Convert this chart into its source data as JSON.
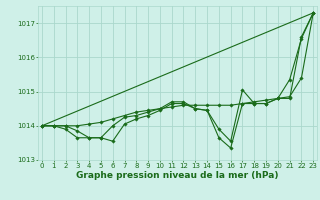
{
  "background_color": "#cff0e8",
  "grid_color": "#aad8cc",
  "line_color": "#1a6b1a",
  "x_values": [
    0,
    1,
    2,
    3,
    4,
    5,
    6,
    7,
    8,
    9,
    10,
    11,
    12,
    13,
    14,
    15,
    16,
    17,
    18,
    19,
    20,
    21,
    22,
    23
  ],
  "series": [
    [
      1014.0,
      1014.0,
      1014.0,
      1013.85,
      1013.65,
      1013.65,
      1013.55,
      1014.05,
      1014.2,
      1014.3,
      1014.45,
      1014.65,
      1014.65,
      1014.5,
      1014.45,
      1013.9,
      1013.55,
      1015.05,
      1014.65,
      1014.65,
      1014.8,
      1014.8,
      1016.6,
      1017.3
    ],
    [
      1014.0,
      1014.0,
      1013.9,
      1013.65,
      1013.65,
      1013.65,
      1014.0,
      1014.25,
      1014.3,
      1014.4,
      1014.5,
      1014.7,
      1014.7,
      1014.5,
      1014.45,
      1013.65,
      1013.35,
      1014.65,
      1014.65,
      1014.65,
      1014.8,
      1015.35,
      1016.55,
      1017.3
    ],
    [
      1014.0,
      1014.0,
      1014.0,
      1014.0,
      1014.05,
      1014.1,
      1014.2,
      1014.3,
      1014.4,
      1014.45,
      1014.5,
      1014.55,
      1014.6,
      1014.6,
      1014.6,
      1014.6,
      1014.6,
      1014.65,
      1014.7,
      1014.75,
      1014.8,
      1014.85,
      1015.4,
      1017.3
    ]
  ],
  "trend_line": [
    [
      0,
      1014.0
    ],
    [
      23,
      1017.3
    ]
  ],
  "ylim": [
    1013.0,
    1017.5
  ],
  "yticks": [
    1013,
    1014,
    1015,
    1016,
    1017
  ],
  "xticks": [
    0,
    1,
    2,
    3,
    4,
    5,
    6,
    7,
    8,
    9,
    10,
    11,
    12,
    13,
    14,
    15,
    16,
    17,
    18,
    19,
    20,
    21,
    22,
    23
  ],
  "marker": "D",
  "markersize": 1.8,
  "linewidth": 0.8,
  "tick_fontsize": 5.0,
  "xlabel": "Graphe pression niveau de la mer (hPa)",
  "xlabel_fontsize": 6.5,
  "xlabel_fontweight": "bold"
}
